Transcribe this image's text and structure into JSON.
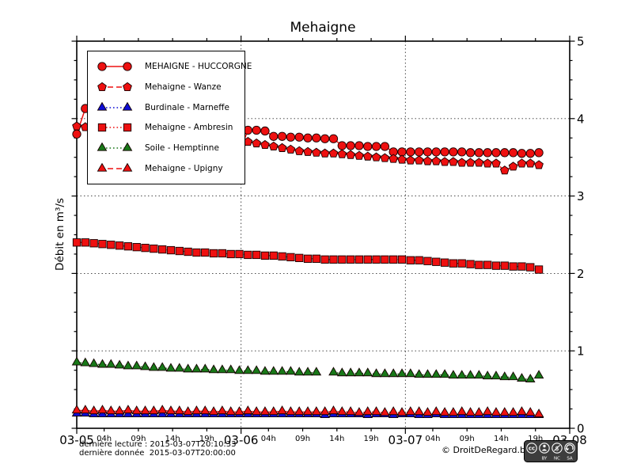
{
  "title": "Mehaigne",
  "y_axis_label": "Débit en m³/s",
  "footer": {
    "line1": "dernière lecture : 2015-03-07T20:10:33",
    "line2": "dernière donnée  2015-03-07T20:00:00",
    "copyright": "© DroitDeRegard.be",
    "badge": {
      "icon": "cc-by-nc-sa-badge",
      "labels": [
        "BY",
        "NC",
        "SA"
      ],
      "cc_text": "cc"
    }
  },
  "chart_data": {
    "type": "line",
    "title": "Mehaigne",
    "xlabel": "",
    "ylabel": "Débit en m³/s",
    "ylim": [
      0,
      5
    ],
    "y_ticks": [
      0,
      1,
      2,
      3,
      4,
      5
    ],
    "y_minor_step": 0.25,
    "grid": "dotted",
    "legend_position": "upper-left",
    "x_start": "2015-03-05T00:00",
    "x_step_hours": 1.25,
    "xlim_hours": [
      0,
      72
    ],
    "x_ticks": [
      {
        "t": 0,
        "label": "03-05",
        "major": true
      },
      {
        "t": 4,
        "label": "04h"
      },
      {
        "t": 9,
        "label": "09h"
      },
      {
        "t": 14,
        "label": "14h"
      },
      {
        "t": 19,
        "label": "19h"
      },
      {
        "t": 24,
        "label": "03-06",
        "major": true
      },
      {
        "t": 28,
        "label": "04h"
      },
      {
        "t": 33,
        "label": "09h"
      },
      {
        "t": 38,
        "label": "14h"
      },
      {
        "t": 43,
        "label": "19h"
      },
      {
        "t": 48,
        "label": "03-07",
        "major": true
      },
      {
        "t": 52,
        "label": "04h"
      },
      {
        "t": 57,
        "label": "09h"
      },
      {
        "t": 62,
        "label": "14h"
      },
      {
        "t": 67,
        "label": "19h"
      },
      {
        "t": 72,
        "label": "03-08",
        "major": true
      }
    ],
    "series": [
      {
        "name": "MEHAIGNE - HUCCORGNE",
        "color": "#ee1010",
        "marker": "circle",
        "line": "solid",
        "values": [
          3.8,
          4.13,
          4.08,
          4.02,
          3.97,
          3.93,
          3.89,
          3.85,
          3.82,
          3.79,
          3.76,
          3.73,
          3.7,
          3.68,
          3.66,
          3.64,
          3.62,
          3.6,
          3.58,
          3.56,
          3.85,
          3.85,
          3.84,
          3.77,
          3.77,
          3.76,
          3.76,
          3.75,
          3.75,
          3.74,
          3.74,
          3.65,
          3.65,
          3.65,
          3.64,
          3.64,
          3.64,
          3.57,
          3.57,
          3.57,
          3.57,
          3.57,
          3.57,
          3.57,
          3.57,
          3.57,
          3.56,
          3.56,
          3.56,
          3.56,
          3.56,
          3.56,
          3.55,
          3.55,
          3.56
        ]
      },
      {
        "name": "Mehaigne - Wanze",
        "color": "#ee1010",
        "marker": "pentagon",
        "line": "dashed",
        "values": [
          3.9,
          3.89,
          3.88,
          3.87,
          3.86,
          3.85,
          3.84,
          3.83,
          3.82,
          3.81,
          3.8,
          3.79,
          3.78,
          3.77,
          3.76,
          3.75,
          3.74,
          3.73,
          3.72,
          3.72,
          3.7,
          3.68,
          3.66,
          3.64,
          3.62,
          3.6,
          3.58,
          3.57,
          3.56,
          3.55,
          3.55,
          3.54,
          3.53,
          3.52,
          3.51,
          3.5,
          3.49,
          3.48,
          3.47,
          3.46,
          3.46,
          3.45,
          3.45,
          3.44,
          3.44,
          3.43,
          3.43,
          3.43,
          3.42,
          3.42,
          3.33,
          3.38,
          3.42,
          3.42,
          3.4
        ]
      },
      {
        "name": "Burdinale - Marneffe",
        "color": "#0d0dd6",
        "marker": "triangle",
        "line": "dotted",
        "values": [
          0.19,
          0.19,
          0.18,
          0.18,
          0.18,
          0.18,
          0.18,
          0.18,
          0.18,
          0.18,
          0.18,
          0.18,
          0.18,
          0.18,
          0.18,
          0.18,
          0.18,
          0.18,
          0.18,
          0.18,
          0.18,
          0.18,
          0.18,
          0.18,
          0.18,
          0.18,
          0.18,
          0.18,
          0.18,
          0.17,
          0.18,
          0.18,
          0.18,
          0.18,
          0.17,
          0.18,
          0.18,
          0.17,
          0.18,
          0.18,
          0.17,
          0.17,
          0.18,
          0.17,
          0.17,
          0.17,
          0.17,
          0.17,
          0.17,
          0.17,
          0.17,
          0.17,
          0.17,
          0.17,
          0.17
        ]
      },
      {
        "name": "Mehaigne - Ambresin",
        "color": "#ee1010",
        "marker": "square",
        "line": "dotted",
        "values": [
          2.4,
          2.4,
          2.39,
          2.38,
          2.37,
          2.36,
          2.35,
          2.34,
          2.33,
          2.32,
          2.31,
          2.3,
          2.29,
          2.28,
          2.27,
          2.27,
          2.26,
          2.26,
          2.25,
          2.25,
          2.24,
          2.24,
          2.23,
          2.23,
          2.22,
          2.21,
          2.2,
          2.19,
          2.19,
          2.18,
          2.18,
          2.18,
          2.18,
          2.18,
          2.18,
          2.18,
          2.18,
          2.18,
          2.18,
          2.17,
          2.17,
          2.16,
          2.15,
          2.14,
          2.13,
          2.13,
          2.12,
          2.11,
          2.11,
          2.1,
          2.1,
          2.09,
          2.09,
          2.08,
          2.05
        ]
      },
      {
        "name": "Soile - Hemptinne",
        "color": "#187818",
        "marker": "triangle",
        "line": "dotted",
        "values": [
          0.85,
          0.84,
          0.83,
          0.82,
          0.82,
          0.81,
          0.8,
          0.8,
          0.79,
          0.78,
          0.78,
          0.77,
          0.77,
          0.76,
          0.76,
          0.76,
          0.75,
          0.75,
          0.75,
          0.74,
          0.74,
          0.74,
          0.73,
          0.73,
          0.73,
          0.73,
          0.72,
          0.72,
          0.72,
          null,
          0.72,
          0.71,
          0.71,
          0.71,
          0.71,
          0.7,
          0.7,
          0.7,
          0.7,
          0.7,
          0.69,
          0.69,
          0.69,
          0.69,
          0.68,
          0.68,
          0.68,
          0.68,
          0.67,
          0.67,
          0.66,
          0.66,
          0.64,
          0.63,
          0.68
        ]
      },
      {
        "name": "Mehaigne - Upigny",
        "color": "#ee1010",
        "marker": "triangle",
        "line": "dashed",
        "values": [
          0.23,
          0.23,
          0.22,
          0.23,
          0.22,
          0.22,
          0.23,
          0.22,
          0.22,
          0.22,
          0.23,
          0.22,
          0.22,
          0.21,
          0.22,
          0.22,
          0.21,
          0.22,
          0.21,
          0.21,
          0.22,
          0.21,
          0.21,
          0.21,
          0.22,
          0.21,
          0.21,
          0.21,
          0.21,
          0.21,
          0.22,
          0.21,
          0.21,
          0.2,
          0.21,
          0.21,
          0.2,
          0.21,
          0.2,
          0.21,
          0.21,
          0.2,
          0.21,
          0.2,
          0.2,
          0.21,
          0.2,
          0.2,
          0.21,
          0.2,
          0.2,
          0.2,
          0.21,
          0.2,
          0.18
        ]
      }
    ]
  }
}
